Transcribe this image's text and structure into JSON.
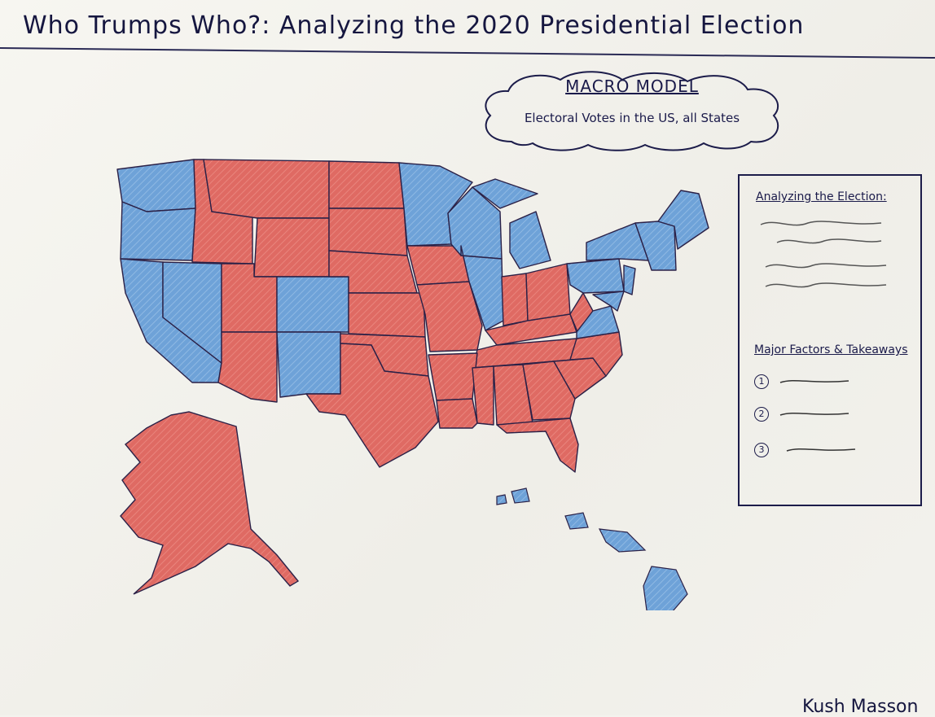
{
  "title": "Who Trumps Who?: Analyzing the 2020 Presidential Election",
  "model": {
    "heading": "MACRO MODEL",
    "subtitle": "Electoral Votes in the US, all States"
  },
  "panel": {
    "section1": "Analyzing the Election:",
    "section2": "Major Factors & Takeaways",
    "items": [
      "1",
      "2",
      "3"
    ]
  },
  "signature": "Kush Masson",
  "colors": {
    "red": "#df6a63",
    "blue": "#6ea2d8",
    "ink": "#1c1c4a"
  },
  "legend_icons": [
    "squiggle-line-icon"
  ]
}
